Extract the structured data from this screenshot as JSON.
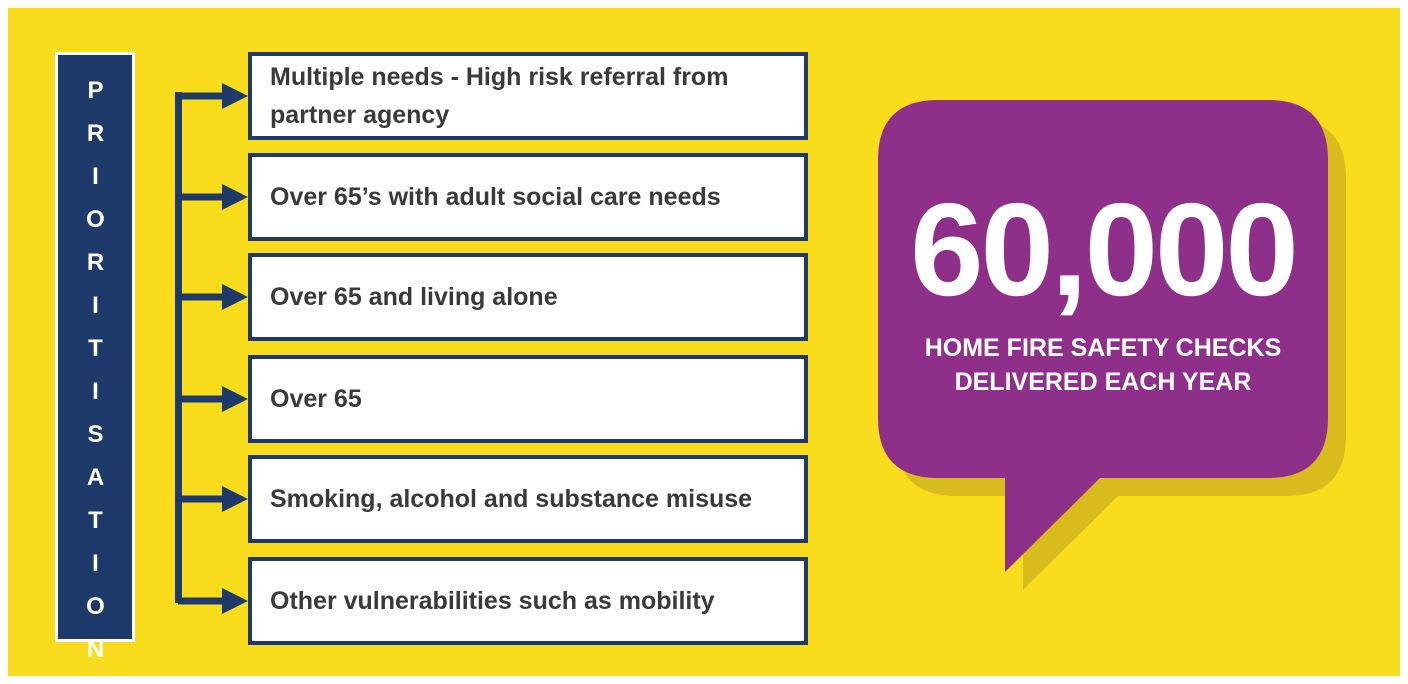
{
  "sidebar": {
    "label": "PRIORITISATION"
  },
  "items": [
    "Multiple needs - High risk referral from partner agency",
    "Over 65’s with adult social care needs",
    "Over 65 and living alone",
    "Over 65",
    "Smoking, alcohol and substance misuse",
    "Other vulnerabilities such as mobility"
  ],
  "callout": {
    "number": "60,000",
    "caption_lines": [
      "HOME FIRE SAFETY CHECKS",
      "DELIVERED EACH YEAR"
    ]
  }
}
